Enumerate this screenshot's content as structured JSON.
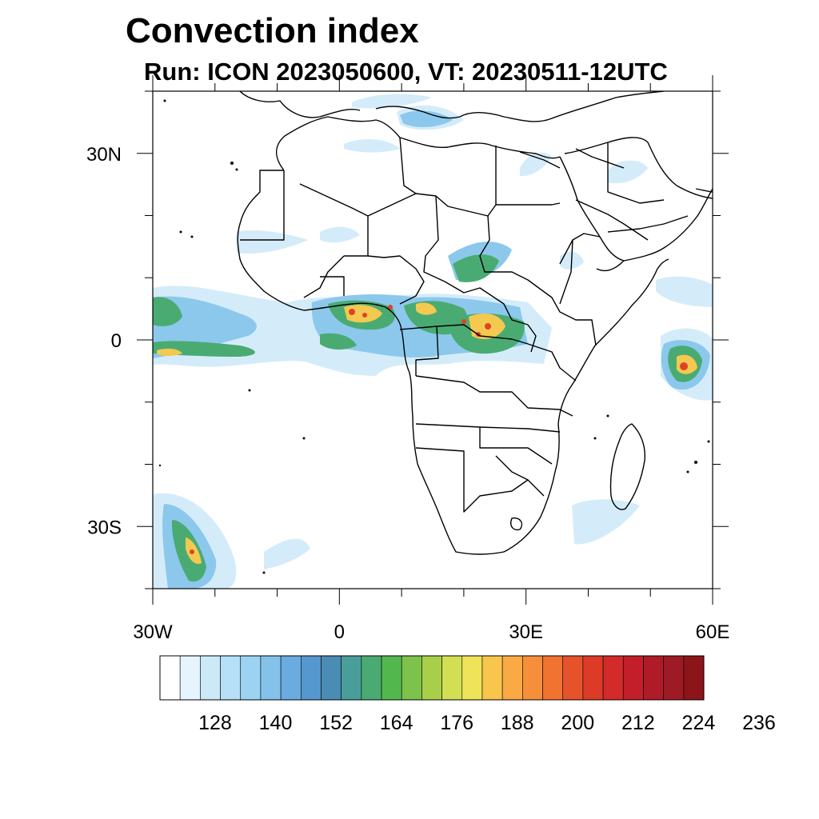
{
  "title": "Convection index",
  "subtitle": "Run: ICON 2023050600,  VT: 20230511-12UTC",
  "map": {
    "lon_range": [
      -30,
      60
    ],
    "lat_range": [
      -40,
      40
    ],
    "lon_ticks": [
      {
        "value": -30,
        "label": "30W"
      },
      {
        "value": 0,
        "label": "0"
      },
      {
        "value": 30,
        "label": "30E"
      },
      {
        "value": 60,
        "label": "60E"
      }
    ],
    "lat_ticks": [
      {
        "value": 30,
        "label": "30N"
      },
      {
        "value": 0,
        "label": "0"
      },
      {
        "value": -30,
        "label": "30S"
      }
    ]
  },
  "colorbar": {
    "colors": [
      "#ffffff",
      "#e6f5fd",
      "#cce9f8",
      "#b5e0f7",
      "#9dd3f2",
      "#84c2ea",
      "#6aacdf",
      "#5597cf",
      "#4a8cb4",
      "#4a9e9a",
      "#4aab72",
      "#52b84d",
      "#7dc24b",
      "#a9cf4a",
      "#d2df52",
      "#efe359",
      "#f8c54d",
      "#f9aa44",
      "#f68f3a",
      "#f17331",
      "#e6522b",
      "#dc3b28",
      "#d22b2a",
      "#c21f2a",
      "#b01b28",
      "#9e1a24",
      "#8b1519"
    ],
    "labels": [
      "128",
      "140",
      "152",
      "164",
      "176",
      "188",
      "200",
      "212",
      "224",
      "236"
    ]
  }
}
